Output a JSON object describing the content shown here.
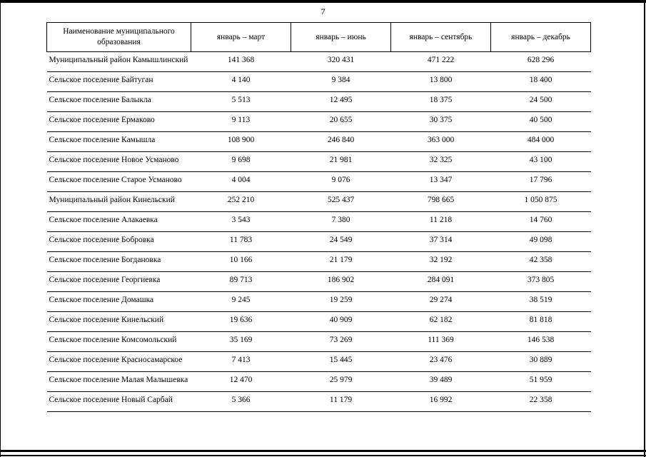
{
  "page": {
    "number": "7"
  },
  "table": {
    "columns": [
      "Наименование муниципального образования",
      "январь – март",
      "январь – июнь",
      "январь – сентябрь",
      "январь – декабрь"
    ],
    "rows": [
      {
        "name": "Муниципальный район Камышлинский",
        "values": [
          "141 368",
          "320 431",
          "471 222",
          "628 296"
        ]
      },
      {
        "name": "Сельское поселение Байтуган",
        "values": [
          "4 140",
          "9 384",
          "13 800",
          "18 400"
        ]
      },
      {
        "name": "Сельское поселение Балыкла",
        "values": [
          "5 513",
          "12 495",
          "18 375",
          "24 500"
        ]
      },
      {
        "name": "Сельское поселение Ермаково",
        "values": [
          "9 113",
          "20 655",
          "30 375",
          "40 500"
        ]
      },
      {
        "name": "Сельское поселение Камышла",
        "values": [
          "108 900",
          "246 840",
          "363 000",
          "484 000"
        ]
      },
      {
        "name": "Сельское поселение Новое Усманово",
        "values": [
          "9 698",
          "21 981",
          "32 325",
          "43 100"
        ]
      },
      {
        "name": "Сельское поселение Старое Усманово",
        "values": [
          "4 004",
          "9 076",
          "13 347",
          "17 796"
        ]
      },
      {
        "name": "Муниципальный район Кинельский",
        "values": [
          "252 210",
          "525 437",
          "798 665",
          "1 050 875"
        ]
      },
      {
        "name": "Сельское поселение Алакаевка",
        "values": [
          "3 543",
          "7 380",
          "11 218",
          "14 760"
        ]
      },
      {
        "name": "Сельское поселение Бобровка",
        "values": [
          "11 783",
          "24 549",
          "37 314",
          "49 098"
        ]
      },
      {
        "name": "Сельское поселение Богдановка",
        "values": [
          "10 166",
          "21 179",
          "32 192",
          "42 358"
        ]
      },
      {
        "name": "Сельское поселение Георгиевка",
        "values": [
          "89 713",
          "186 902",
          "284 091",
          "373 805"
        ]
      },
      {
        "name": "Сельское поселение Домашка",
        "values": [
          "9 245",
          "19 259",
          "29 274",
          "38 519"
        ]
      },
      {
        "name": "Сельское поселение Кинельский",
        "values": [
          "19 636",
          "40 909",
          "62 182",
          "81 818"
        ]
      },
      {
        "name": "Сельское поселение Комсомольский",
        "values": [
          "35 169",
          "73 269",
          "111 369",
          "146 538"
        ]
      },
      {
        "name": "Сельское поселение Красносамарское",
        "values": [
          "7 413",
          "15 445",
          "23 476",
          "30 889"
        ]
      },
      {
        "name": "Сельское поселение Малая Малышевка",
        "values": [
          "12 470",
          "25 979",
          "39 489",
          "51 959"
        ]
      },
      {
        "name": "Сельское поселение Новый Сарбай",
        "values": [
          "5 366",
          "11 179",
          "16 992",
          "22 358"
        ]
      }
    ]
  }
}
